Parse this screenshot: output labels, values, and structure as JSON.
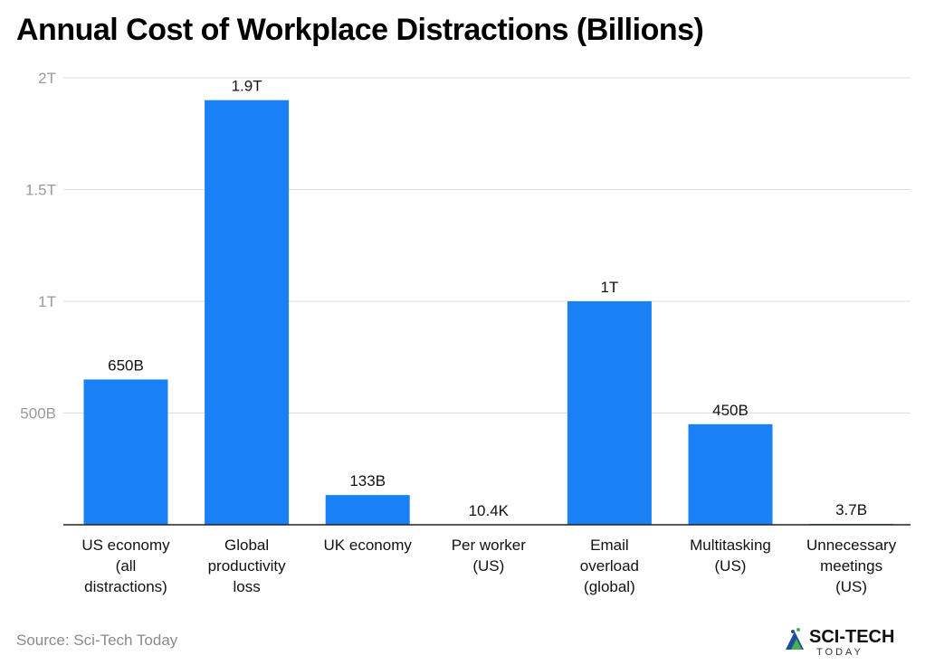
{
  "chart_data": {
    "type": "bar",
    "title": "Annual Cost of Workplace Distractions (Billions)",
    "categories": [
      [
        "US economy",
        "(all",
        "distractions)"
      ],
      [
        "Global",
        "productivity",
        "loss"
      ],
      [
        "UK economy"
      ],
      [
        "Per worker",
        "(US)"
      ],
      [
        "Email",
        "overload",
        "(global)"
      ],
      [
        "Multitasking",
        "(US)"
      ],
      [
        "Unnecessary",
        "meetings",
        "(US)"
      ]
    ],
    "values": [
      650000000000,
      1900000000000,
      133000000000,
      10400,
      1000000000000,
      450000000000,
      3700000000
    ],
    "data_labels": [
      "650B",
      "1.9T",
      "133B",
      "10.4K",
      "1T",
      "450B",
      "3.7B"
    ],
    "y_ticks": [
      500000000000,
      1000000000000,
      1500000000000,
      2000000000000
    ],
    "y_tick_labels": [
      "500B",
      "1T",
      "1.5T",
      "2T"
    ],
    "ylim": [
      0,
      2000000000000
    ],
    "grid": true,
    "bar_color": "#1a80f5"
  },
  "footer": {
    "source": "Source: Sci-Tech Today",
    "logo_text_main": "SCI-TECH",
    "logo_text_sub": "TODAY"
  }
}
